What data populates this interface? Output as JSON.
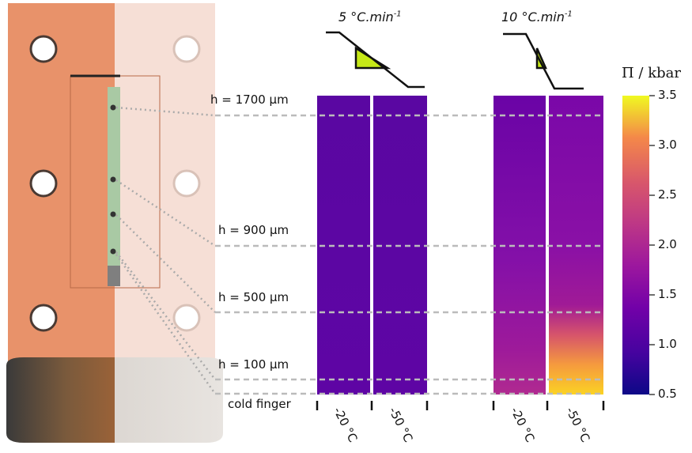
{
  "heights": [
    "h = 1700 µm",
    "h = 900 µm",
    "h = 500 µm",
    "h = 100 µm",
    "cold finger"
  ],
  "rates": [
    {
      "value": "5 °C.min",
      "exp": "-1"
    },
    {
      "value": "10 °C.min",
      "exp": "-1"
    }
  ],
  "temperatures": [
    "-20 °C",
    "-50 °C",
    "-20 °C",
    "-50 °C"
  ],
  "colorbar": {
    "title": "Π / kbar",
    "ticks": [
      "3.5",
      "3.0",
      "2.5",
      "2.0",
      "1.5",
      "1.0",
      "0.5"
    ],
    "min": 0.5,
    "max": 3.5,
    "colormap": "plasma"
  },
  "colors": {
    "copper": "#e8926a",
    "base_dark": "#444444",
    "sample": "#a9c9a4",
    "triangle_fill": "#c6e817",
    "guide_line": "#bbbbbb",
    "plasma_low": "#0d0887",
    "plasma_mid": "#cc4778",
    "plasma_high": "#f0f921"
  }
}
